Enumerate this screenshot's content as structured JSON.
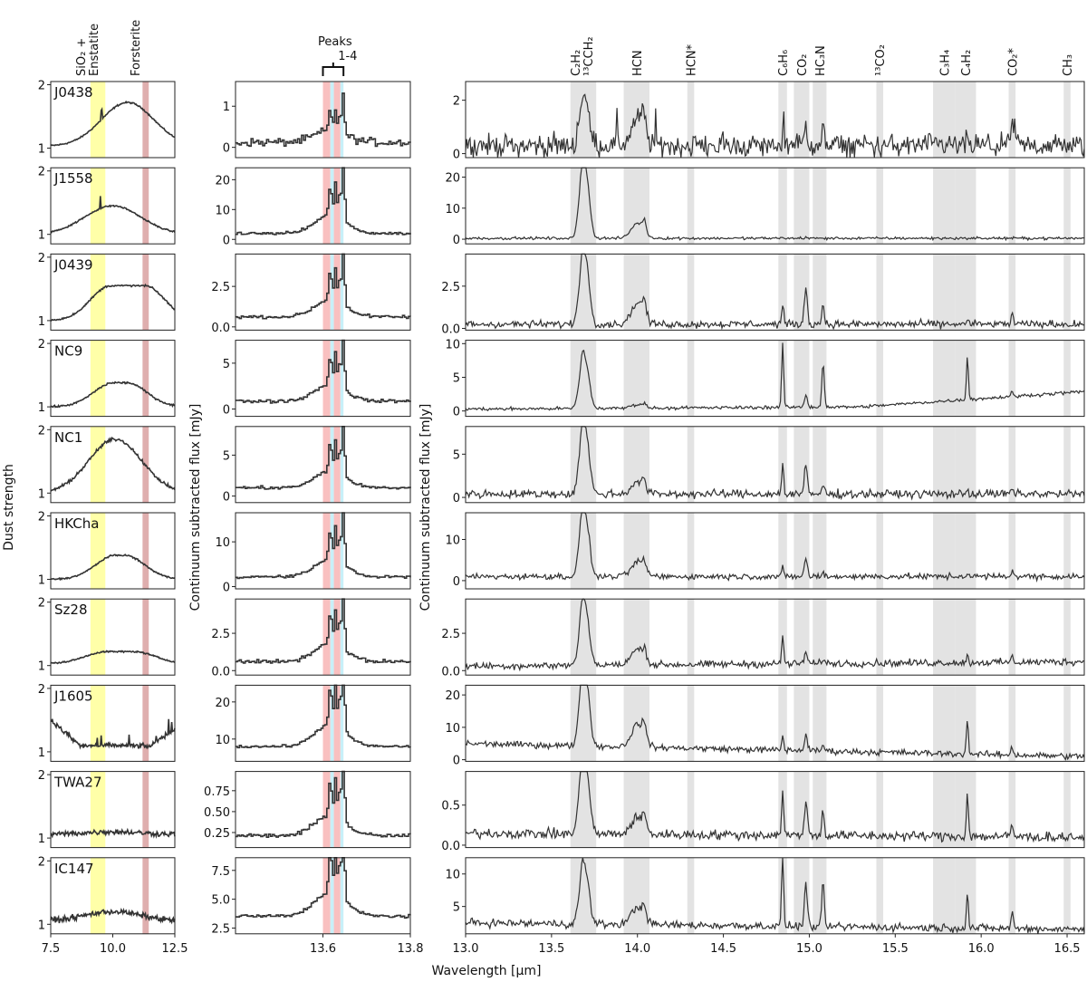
{
  "figure": {
    "y_label_left": "Dust strength",
    "y_label_mid": "Continuum subtracted flux [mJy]",
    "y_label_right": "Continuum subtracted flux [mJy]",
    "x_label": "Wavelength [μm]"
  },
  "chart_data": [
    {
      "type": "line",
      "panel": "dust-strength",
      "ylabel": "Dust strength",
      "xlabel": "",
      "xlim": [
        7.5,
        12.5
      ],
      "xticks": [
        7.5,
        10.0,
        12.5
      ],
      "ylim": [
        0.85,
        2.05
      ],
      "yticks": [
        1,
        2
      ],
      "bands": [
        {
          "label_line1": "SiO₂ +",
          "label_line2": "Enstatite",
          "from": 9.1,
          "to": 9.7,
          "color": "#ffff99"
        },
        {
          "label_line1": "Forsterite",
          "label_line2": "",
          "from": 11.2,
          "to": 11.45,
          "color": "#d9a0a0"
        }
      ],
      "series": [
        {
          "name": "J0438",
          "baseline": 1.03,
          "peak": 1.72,
          "center": 10.6,
          "width": 1.5,
          "flat": 0.0,
          "noise": 0.01
        },
        {
          "name": "J1558",
          "baseline": 1.0,
          "peak": 1.45,
          "center": 10.0,
          "width": 1.6,
          "flat": 0.0,
          "noise": 0.01
        },
        {
          "name": "J0439",
          "baseline": 1.0,
          "peak": 1.55,
          "center": 10.6,
          "width": 1.7,
          "flat": 0.8,
          "noise": 0.012
        },
        {
          "name": "NC9",
          "baseline": 1.0,
          "peak": 1.38,
          "center": 10.3,
          "width": 1.7,
          "flat": 0.3,
          "noise": 0.012
        },
        {
          "name": "NC1",
          "baseline": 1.0,
          "peak": 1.85,
          "center": 10.1,
          "width": 1.5,
          "flat": 0.0,
          "noise": 0.02
        },
        {
          "name": "HKCha",
          "baseline": 1.0,
          "peak": 1.38,
          "center": 10.3,
          "width": 1.7,
          "flat": 0.2,
          "noise": 0.01
        },
        {
          "name": "Sz28",
          "baseline": 1.03,
          "peak": 1.22,
          "center": 10.3,
          "width": 1.8,
          "flat": 0.6,
          "noise": 0.01
        },
        {
          "name": "J1605",
          "baseline": 1.08,
          "peak": 1.1,
          "center": 10.0,
          "width": 1.5,
          "flat": 0.0,
          "noise": 0.03
        },
        {
          "name": "TWA27",
          "baseline": 1.06,
          "peak": 1.1,
          "center": 10.0,
          "width": 1.5,
          "flat": 0.0,
          "noise": 0.035
        },
        {
          "name": "IC147",
          "baseline": 1.05,
          "peak": 1.2,
          "center": 10.0,
          "width": 1.6,
          "flat": 0.0,
          "noise": 0.035
        }
      ]
    },
    {
      "type": "line",
      "panel": "zoom-13.4-13.8",
      "ylabel": "Continuum subtracted flux [mJy]",
      "xlabel": "",
      "xlim": [
        13.4,
        13.8
      ],
      "xticks": [
        13.6,
        13.8
      ],
      "annotation_line1": "Peaks",
      "annotation_line2": "1-4",
      "bands": [
        {
          "from": 13.6,
          "to": 13.617,
          "color": "#f9c0c0"
        },
        {
          "from": 13.617,
          "to": 13.625,
          "color": "#c8f0f8"
        },
        {
          "from": 13.625,
          "to": 13.64,
          "color": "#f9c0c0"
        },
        {
          "from": 13.64,
          "to": 13.647,
          "color": "#c8f0f8"
        }
      ],
      "series": [
        {
          "name": "J0438",
          "scale": 1.5,
          "base": 0.05,
          "noise": 0.08,
          "ylim": [
            -0.25,
            1.6
          ],
          "yticks": [
            0,
            1
          ],
          "yticklabels": [
            "0",
            "1"
          ]
        },
        {
          "name": "J1558",
          "scale": 22,
          "base": 0.5,
          "noise": 0.4,
          "ylim": [
            -1.5,
            24
          ],
          "yticks": [
            0,
            10,
            20
          ],
          "yticklabels": [
            "0",
            "10",
            "20"
          ]
        },
        {
          "name": "J0439",
          "scale": 3.9,
          "base": 0.35,
          "noise": 0.08,
          "ylim": [
            -0.2,
            4.5
          ],
          "yticks": [
            0,
            2.5
          ],
          "yticklabels": [
            "0.0",
            "2.5"
          ]
        },
        {
          "name": "NC9",
          "scale": 6.8,
          "base": 0.4,
          "noise": 0.15,
          "ylim": [
            -0.8,
            7.5
          ],
          "yticks": [
            0,
            5
          ],
          "yticklabels": [
            "0",
            "5"
          ]
        },
        {
          "name": "NC1",
          "scale": 7.5,
          "base": 0.5,
          "noise": 0.15,
          "ylim": [
            -0.8,
            8.5
          ],
          "yticks": [
            0,
            5
          ],
          "yticklabels": [
            "0",
            "5"
          ]
        },
        {
          "name": "HKCha",
          "scale": 14.5,
          "base": 1.2,
          "noise": 0.25,
          "ylim": [
            -0.5,
            16.5
          ],
          "yticks": [
            0,
            10
          ],
          "yticklabels": [
            "0",
            "10"
          ]
        },
        {
          "name": "Sz28",
          "scale": 4.5,
          "base": 0.3,
          "noise": 0.1,
          "ylim": [
            -0.3,
            4.8
          ],
          "yticks": [
            0,
            2.5
          ],
          "yticklabels": [
            "0.0",
            "2.5"
          ]
        },
        {
          "name": "J1605",
          "scale": 22,
          "base": 6.5,
          "noise": 0.3,
          "ylim": [
            4,
            24.5
          ],
          "yticks": [
            10,
            20
          ],
          "yticklabels": [
            "10",
            "20"
          ]
        },
        {
          "name": "TWA27",
          "scale": 0.9,
          "base": 0.15,
          "noise": 0.02,
          "ylim": [
            0.07,
            0.98
          ],
          "yticks": [
            0.25,
            0.5,
            0.75
          ],
          "yticklabels": [
            "0.25",
            "0.50",
            "0.75"
          ]
        },
        {
          "name": "IC147",
          "scale": 7.8,
          "base": 3.0,
          "noise": 0.12,
          "ylim": [
            2.0,
            8.6
          ],
          "yticks": [
            2.5,
            5.0,
            7.5
          ],
          "yticklabels": [
            "2.5",
            "5.0",
            "7.5"
          ]
        }
      ]
    },
    {
      "type": "line",
      "panel": "full-13.0-16.6",
      "ylabel": "Continuum subtracted flux [mJy]",
      "xlabel": "Wavelength [μm]",
      "xlim": [
        13.0,
        16.6
      ],
      "xticks": [
        13.0,
        13.5,
        14.0,
        14.5,
        15.0,
        15.5,
        16.0,
        16.5
      ],
      "xticklabels": [
        "13.0",
        "13.5",
        "14.0",
        "14.5",
        "15.0",
        "15.5",
        "16.0",
        "16.5"
      ],
      "molecule_bands": [
        {
          "label": "C₂H₂",
          "label2": "¹³CCH₂",
          "from": 13.61,
          "to": 13.76
        },
        {
          "label": "HCN",
          "label2": "",
          "from": 13.92,
          "to": 14.07
        },
        {
          "label": "HCN*",
          "label2": "",
          "from": 14.29,
          "to": 14.33
        },
        {
          "label": "C₆H₆",
          "label2": "",
          "from": 14.82,
          "to": 14.87
        },
        {
          "label": "CO₂",
          "label2": "",
          "from": 14.91,
          "to": 15.0
        },
        {
          "label": "HC₃N",
          "label2": "",
          "from": 15.02,
          "to": 15.1
        },
        {
          "label": "¹³CO₂",
          "label2": "",
          "from": 15.39,
          "to": 15.43
        },
        {
          "label": "C₃H₄",
          "label2": "",
          "from": 15.72,
          "to": 15.85
        },
        {
          "label": "C₄H₂",
          "label2": "",
          "from": 15.85,
          "to": 15.97
        },
        {
          "label": "CO₂*",
          "label2": "",
          "from": 16.16,
          "to": 16.2
        },
        {
          "label": "CH₃",
          "label2": "",
          "from": 16.48,
          "to": 16.52
        }
      ],
      "series": [
        {
          "name": "J0438",
          "c2h2": 1.5,
          "hcn": 1.5,
          "c6h6": 0.3,
          "co2": 0.8,
          "hc3n": 0.5,
          "c4h2": 0.3,
          "co2star": 0.8,
          "noise": 0.35,
          "base": 0.3,
          "slope": 0.0,
          "ylim": [
            -0.15,
            2.7
          ],
          "yticks": [
            0,
            2
          ],
          "yticklabels": [
            "0",
            "2"
          ]
        },
        {
          "name": "J1558",
          "c2h2": 21,
          "hcn": 7,
          "c6h6": 0.3,
          "co2": 0.3,
          "hc3n": 0.0,
          "c4h2": 0.0,
          "co2star": 0.0,
          "noise": 0.35,
          "base": 0.3,
          "slope": 0.0,
          "ylim": [
            -1.5,
            23
          ],
          "yticks": [
            0,
            10,
            20
          ],
          "yticklabels": [
            "0",
            "10",
            "20"
          ]
        },
        {
          "name": "J0439",
          "c2h2": 3.7,
          "hcn": 1.8,
          "c6h6": 1.2,
          "co2": 2.2,
          "hc3n": 1.2,
          "c4h2": 0.3,
          "co2star": 0.6,
          "noise": 0.18,
          "base": 0.25,
          "slope": 0.0,
          "ylim": [
            -0.1,
            4.4
          ],
          "yticks": [
            0,
            2.5
          ],
          "yticklabels": [
            "0.0",
            "2.5"
          ]
        },
        {
          "name": "NC9",
          "c2h2": 6.5,
          "hcn": 0.8,
          "c6h6": 9.5,
          "co2": 1.8,
          "hc3n": 6.5,
          "c4h2": 6.5,
          "co2star": 0.6,
          "noise": 0.2,
          "base": 0.3,
          "slope": 2.2,
          "ylim": [
            -0.8,
            10.5
          ],
          "yticks": [
            0,
            5,
            10
          ],
          "yticklabels": [
            "0",
            "5",
            "10"
          ]
        },
        {
          "name": "NC1",
          "c2h2": 6.8,
          "hcn": 2.0,
          "c6h6": 3.5,
          "co2": 3.2,
          "hc3n": 1.0,
          "c4h2": 0.6,
          "co2star": 0.6,
          "noise": 0.4,
          "base": 0.4,
          "slope": 0.0,
          "ylim": [
            -0.6,
            8.2
          ],
          "yticks": [
            0,
            5
          ],
          "yticklabels": [
            "0",
            "5"
          ]
        },
        {
          "name": "HKCha",
          "c2h2": 14.0,
          "hcn": 5.0,
          "c6h6": 2.0,
          "co2": 4.5,
          "hc3n": 0.8,
          "c4h2": 1.0,
          "co2star": 1.5,
          "noise": 0.6,
          "base": 1.0,
          "slope": 0.0,
          "ylim": [
            -2.0,
            16.5
          ],
          "yticks": [
            0,
            10
          ],
          "yticklabels": [
            "0",
            "10"
          ]
        },
        {
          "name": "Sz28",
          "c2h2": 3.7,
          "hcn": 1.5,
          "c6h6": 2.0,
          "co2": 0.8,
          "hc3n": 0.4,
          "c4h2": 0.4,
          "co2star": 0.3,
          "noise": 0.2,
          "base": 0.3,
          "slope": 0.3,
          "ylim": [
            -0.3,
            4.8
          ],
          "yticks": [
            0,
            2.5
          ],
          "yticklabels": [
            "0.0",
            "2.5"
          ]
        },
        {
          "name": "J1605",
          "c2h2": 21.0,
          "hcn": 10.0,
          "c6h6": 4.5,
          "co2": 5.0,
          "hc3n": 2.0,
          "c4h2": 11.0,
          "co2star": 2.5,
          "noise": 0.8,
          "base": 5.0,
          "slope": -4.0,
          "ylim": [
            -0.5,
            23.0
          ],
          "yticks": [
            0,
            10,
            20
          ],
          "yticklabels": [
            "0",
            "10",
            "20"
          ]
        },
        {
          "name": "TWA27",
          "c2h2": 0.85,
          "hcn": 0.3,
          "c6h6": 0.6,
          "co2": 0.45,
          "hc3n": 0.3,
          "c4h2": 0.55,
          "co2star": 0.15,
          "noise": 0.05,
          "base": 0.15,
          "slope": -0.05,
          "ylim": [
            -0.03,
            0.92
          ],
          "yticks": [
            0.0,
            0.5
          ],
          "yticklabels": [
            "0.0",
            "0.5"
          ]
        },
        {
          "name": "IC147",
          "c2h2": 7.5,
          "hcn": 3.8,
          "c6h6": 11.5,
          "co2": 6.5,
          "hc3n": 6.5,
          "c4h2": 5.5,
          "co2star": 2.5,
          "noise": 0.5,
          "base": 2.5,
          "slope": -1.0,
          "ylim": [
            0.8,
            12.5
          ],
          "yticks": [
            5,
            10
          ],
          "yticklabels": [
            "5",
            "10"
          ]
        }
      ]
    }
  ]
}
